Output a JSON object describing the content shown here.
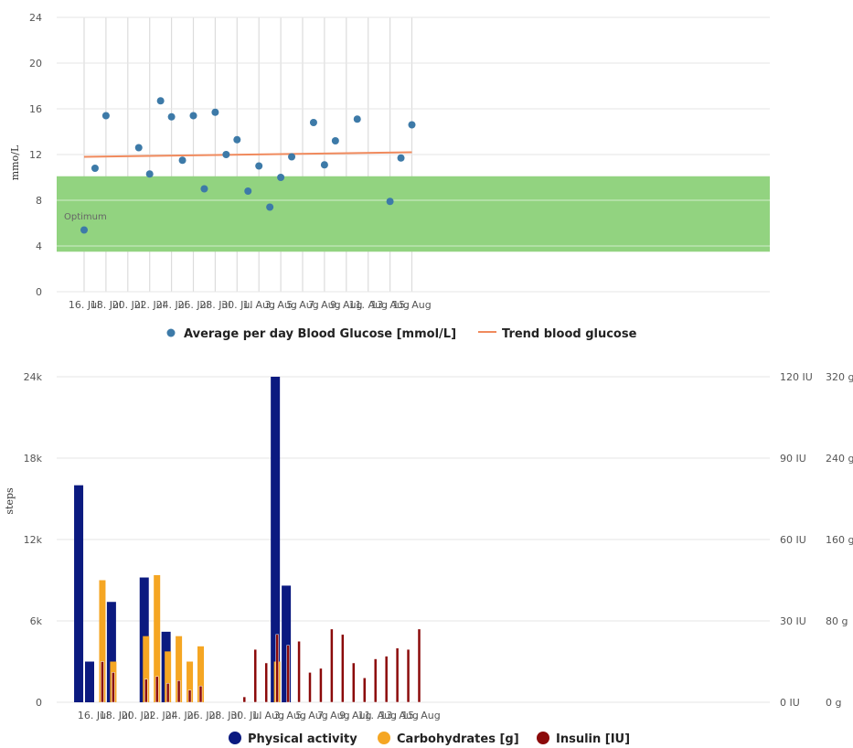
{
  "chart_data": [
    {
      "type": "scatter",
      "title": "",
      "ylabel": "mmo/L",
      "xlabel": "",
      "ylim": [
        0,
        24
      ],
      "yticks": [
        "0",
        "4",
        "8",
        "12",
        "16",
        "20",
        "24"
      ],
      "x_tick_labels": [
        "16. Jul",
        "18. Jul",
        "20. Jul",
        "22. Jul",
        "24. Jul",
        "26. Jul",
        "28. Jul",
        "30. Jul",
        "1. Aug",
        "3. Aug",
        "5. Aug",
        "7. Aug",
        "9. Aug",
        "11. Aug",
        "13. Aug",
        "15. Aug"
      ],
      "grid": true,
      "legend_position": "bottom",
      "band": {
        "label": "Optimum",
        "from": 3.5,
        "to": 10.1,
        "color": "#90d27d"
      },
      "colors": {
        "points": "#3d7aa8",
        "trend": "#f08a5d"
      },
      "series": [
        {
          "name": "Average per day Blood Glucose [mmol/L]",
          "points": [
            {
              "x": "16. Jul",
              "y": 5.4
            },
            {
              "x": "17. Jul",
              "y": 10.8
            },
            {
              "x": "18. Jul",
              "y": 15.4
            },
            {
              "x": "21. Jul",
              "y": 12.6
            },
            {
              "x": "22. Jul",
              "y": 10.3
            },
            {
              "x": "23. Jul",
              "y": 16.7
            },
            {
              "x": "24. Jul",
              "y": 15.3
            },
            {
              "x": "25. Jul",
              "y": 11.5
            },
            {
              "x": "26. Jul",
              "y": 15.4
            },
            {
              "x": "27. Jul",
              "y": 9.0
            },
            {
              "x": "28. Jul",
              "y": 15.7
            },
            {
              "x": "29. Jul",
              "y": 12.0
            },
            {
              "x": "30. Jul",
              "y": 13.3
            },
            {
              "x": "31. Jul",
              "y": 8.8
            },
            {
              "x": "1. Aug",
              "y": 11.0
            },
            {
              "x": "2. Aug",
              "y": 7.4
            },
            {
              "x": "3. Aug",
              "y": 10.0
            },
            {
              "x": "4. Aug",
              "y": 11.8
            },
            {
              "x": "6. Aug",
              "y": 14.8
            },
            {
              "x": "7. Aug",
              "y": 11.1
            },
            {
              "x": "8. Aug",
              "y": 13.2
            },
            {
              "x": "10. Aug",
              "y": 15.1
            },
            {
              "x": "13. Aug",
              "y": 7.9
            },
            {
              "x": "14. Aug",
              "y": 11.7
            },
            {
              "x": "15. Aug",
              "y": 14.6
            }
          ]
        },
        {
          "name": "Trend blood glucose",
          "line": [
            {
              "x": "16. Jul",
              "y": 11.8
            },
            {
              "x": "15. Aug",
              "y": 12.2
            }
          ]
        }
      ]
    },
    {
      "type": "bar",
      "title": "",
      "xlabel": "",
      "x_tick_labels": [
        "16. Jul",
        "18. Jul",
        "20. Jul",
        "22. Jul",
        "24. Jul",
        "26. Jul",
        "28. Jul",
        "30. Jul",
        "1. Aug",
        "3. Aug",
        "5. Aug",
        "7. Aug",
        "9. Aug",
        "11. Aug",
        "13. Aug",
        "15. Aug"
      ],
      "legend_position": "bottom",
      "axes": {
        "steps": {
          "title": "steps",
          "ylim": [
            0,
            24000
          ],
          "ticks": [
            "0",
            "6k",
            "12k",
            "18k",
            "24k"
          ]
        },
        "insulin": {
          "ylim": [
            0,
            120
          ],
          "ticks": [
            "0 IU",
            "30 IU",
            "60 IU",
            "90 IU",
            "120 IU"
          ]
        },
        "carbs": {
          "ylim": [
            0,
            320
          ],
          "ticks": [
            "0 g",
            "80 g",
            "160 g",
            "240 g",
            "320 g"
          ]
        }
      },
      "colors": {
        "steps": "#0b1a80",
        "carbs": "#f5a623",
        "insulin": "#8b0a0a"
      },
      "series": [
        {
          "name": "Physical activity",
          "axis": "steps",
          "values": [
            {
              "x": "15. Jul",
              "y": 16000
            },
            {
              "x": "16. Jul",
              "y": 3000
            },
            {
              "x": "18. Jul",
              "y": 7400
            },
            {
              "x": "21. Jul",
              "y": 9200
            },
            {
              "x": "23. Jul",
              "y": 5200
            },
            {
              "x": "2. Aug",
              "y": 24000
            },
            {
              "x": "3. Aug",
              "y": 8600
            }
          ]
        },
        {
          "name": "Carbohydrates [g]",
          "axis": "carbs",
          "values": [
            {
              "x": "17. Jul",
              "y": 120
            },
            {
              "x": "18. Jul",
              "y": 40
            },
            {
              "x": "21. Jul",
              "y": 65
            },
            {
              "x": "22. Jul",
              "y": 125
            },
            {
              "x": "23. Jul",
              "y": 50
            },
            {
              "x": "24. Jul",
              "y": 65
            },
            {
              "x": "25. Jul",
              "y": 40
            },
            {
              "x": "26. Jul",
              "y": 55
            },
            {
              "x": "2. Aug",
              "y": 40
            }
          ]
        },
        {
          "name": "Insulin [IU]",
          "axis": "insulin",
          "values": [
            {
              "x": "17. Jul",
              "y": 15
            },
            {
              "x": "18. Jul",
              "y": 11
            },
            {
              "x": "21. Jul",
              "y": 8.5
            },
            {
              "x": "22. Jul",
              "y": 9.5
            },
            {
              "x": "23. Jul",
              "y": 7
            },
            {
              "x": "24. Jul",
              "y": 8
            },
            {
              "x": "25. Jul",
              "y": 4.5
            },
            {
              "x": "26. Jul",
              "y": 6
            },
            {
              "x": "30. Jul",
              "y": 2
            },
            {
              "x": "31. Jul",
              "y": 19.5
            },
            {
              "x": "1. Aug",
              "y": 14.5
            },
            {
              "x": "2. Aug",
              "y": 25
            },
            {
              "x": "3. Aug",
              "y": 21
            },
            {
              "x": "4. Aug",
              "y": 22.5
            },
            {
              "x": "5. Aug",
              "y": 11
            },
            {
              "x": "6. Aug",
              "y": 12.5
            },
            {
              "x": "7. Aug",
              "y": 27
            },
            {
              "x": "8. Aug",
              "y": 25
            },
            {
              "x": "9. Aug",
              "y": 14.5
            },
            {
              "x": "10. Aug",
              "y": 9
            },
            {
              "x": "11. Aug",
              "y": 16
            },
            {
              "x": "12. Aug",
              "y": 17
            },
            {
              "x": "13. Aug",
              "y": 20
            },
            {
              "x": "14. Aug",
              "y": 19.5
            },
            {
              "x": "15. Aug",
              "y": 27
            }
          ]
        }
      ]
    }
  ]
}
